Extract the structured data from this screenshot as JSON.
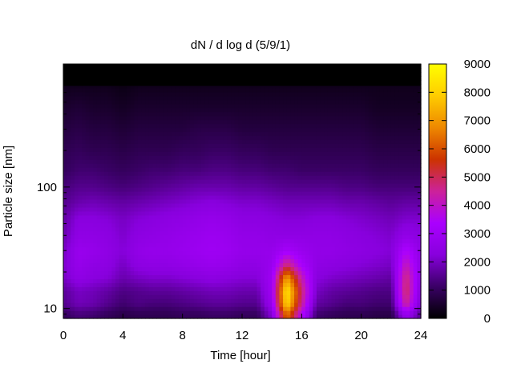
{
  "chart_data": {
    "type": "heatmap",
    "title": "dN / d log d (5/9/1)",
    "xlabel": "Time [hour]",
    "ylabel": "Particle size [nm]",
    "x_range": [
      0,
      24
    ],
    "x_ticks": [
      0,
      4,
      8,
      12,
      16,
      20,
      24
    ],
    "y_scale": "log",
    "y_range_nm": [
      8.3,
      1030
    ],
    "y_ticks": [
      10,
      100
    ],
    "colorbar": {
      "range": [
        0,
        9000
      ],
      "ticks": [
        0,
        1000,
        2000,
        3000,
        4000,
        5000,
        6000,
        7000,
        8000,
        9000
      ],
      "palette": [
        "#000000",
        "#3a0066",
        "#8800dd",
        "#aa00ff",
        "#cc2299",
        "#cc3300",
        "#ee8800",
        "#ffcc00",
        "#ffff00"
      ]
    },
    "time_hours": [
      0,
      1,
      2,
      3,
      4,
      5,
      6,
      7,
      8,
      9,
      10,
      11,
      12,
      13,
      14,
      15,
      16,
      17,
      18,
      19,
      20,
      21,
      22,
      23,
      24
    ],
    "size_nm": [
      9,
      11,
      14,
      18,
      23,
      30,
      40,
      55,
      75,
      100,
      140,
      200,
      300,
      450,
      700
    ],
    "values": [
      [
        1000,
        1500,
        1600,
        2000,
        2100,
        2000,
        1800,
        1700,
        1500,
        1300,
        1000,
        900,
        700,
        500,
        300
      ],
      [
        1300,
        1900,
        2000,
        2500,
        2700,
        2800,
        2500,
        2300,
        1800,
        1500,
        1200,
        1000,
        800,
        600,
        300
      ],
      [
        1200,
        1800,
        1900,
        2300,
        2500,
        2700,
        2500,
        2300,
        1900,
        1500,
        1200,
        900,
        700,
        500,
        300
      ],
      [
        1000,
        1500,
        1700,
        2200,
        2400,
        2500,
        2400,
        2200,
        1800,
        1400,
        1100,
        900,
        700,
        500,
        300
      ],
      [
        800,
        1200,
        1400,
        1800,
        2000,
        2200,
        2100,
        2000,
        1700,
        1300,
        1000,
        800,
        600,
        400,
        200
      ],
      [
        900,
        1400,
        1500,
        2000,
        2400,
        2600,
        2400,
        2200,
        1800,
        1400,
        1100,
        900,
        700,
        500,
        300
      ],
      [
        900,
        1300,
        1600,
        2100,
        2500,
        2700,
        2500,
        2300,
        1900,
        1500,
        1200,
        900,
        700,
        500,
        300
      ],
      [
        900,
        1300,
        1600,
        2100,
        2500,
        2700,
        2600,
        2400,
        2000,
        1600,
        1200,
        900,
        700,
        500,
        300
      ],
      [
        1000,
        1400,
        1700,
        2200,
        2600,
        2800,
        2700,
        2500,
        2100,
        1700,
        1300,
        1000,
        700,
        500,
        300
      ],
      [
        1000,
        1500,
        1800,
        2300,
        2700,
        2900,
        2800,
        2600,
        2200,
        1800,
        1300,
        1000,
        800,
        500,
        300
      ],
      [
        1100,
        1600,
        1900,
        2400,
        2800,
        3000,
        2900,
        2700,
        2300,
        1800,
        1400,
        1100,
        800,
        500,
        300
      ],
      [
        1100,
        1600,
        1900,
        2300,
        2700,
        2900,
        2800,
        2600,
        2200,
        1800,
        1400,
        1100,
        800,
        500,
        300
      ],
      [
        1000,
        1500,
        1800,
        2200,
        2500,
        2700,
        2600,
        2400,
        2100,
        1700,
        1300,
        1000,
        700,
        500,
        300
      ],
      [
        1000,
        1500,
        1800,
        2200,
        2500,
        2700,
        2600,
        2400,
        2100,
        1700,
        1300,
        1000,
        700,
        500,
        300
      ],
      [
        2200,
        2800,
        3000,
        3000,
        2800,
        2700,
        2500,
        2300,
        2000,
        1600,
        1200,
        900,
        700,
        500,
        300
      ],
      [
        6500,
        8200,
        8500,
        7200,
        4800,
        3200,
        2500,
        2200,
        1900,
        1500,
        1200,
        900,
        700,
        500,
        300
      ],
      [
        3500,
        4500,
        4800,
        4200,
        3300,
        2800,
        2500,
        2200,
        1900,
        1500,
        1100,
        900,
        700,
        500,
        300
      ],
      [
        1200,
        1700,
        2000,
        2300,
        2500,
        2600,
        2500,
        2300,
        1900,
        1500,
        1100,
        900,
        700,
        500,
        300
      ],
      [
        1000,
        1500,
        1700,
        2100,
        2400,
        2600,
        2500,
        2300,
        1900,
        1500,
        1100,
        900,
        700,
        500,
        300
      ],
      [
        900,
        1300,
        1600,
        2000,
        2300,
        2500,
        2400,
        2200,
        1800,
        1400,
        1100,
        900,
        700,
        500,
        300
      ],
      [
        900,
        1300,
        1500,
        1900,
        2200,
        2400,
        2300,
        2100,
        1800,
        1400,
        1100,
        900,
        700,
        500,
        300
      ],
      [
        800,
        1200,
        1400,
        1800,
        2100,
        2300,
        2200,
        2000,
        1700,
        1300,
        1000,
        800,
        600,
        400,
        300
      ],
      [
        800,
        1200,
        1400,
        1700,
        2000,
        2200,
        2100,
        1900,
        1600,
        1300,
        1000,
        800,
        600,
        400,
        300
      ],
      [
        2800,
        4600,
        5000,
        4800,
        4200,
        3500,
        2600,
        2100,
        1700,
        1300,
        1000,
        800,
        600,
        400,
        300
      ],
      [
        1500,
        2000,
        2200,
        2400,
        2500,
        2500,
        2300,
        2100,
        1700,
        1300,
        1000,
        800,
        600,
        400,
        300
      ]
    ],
    "missing_top_size_nm": 680
  }
}
